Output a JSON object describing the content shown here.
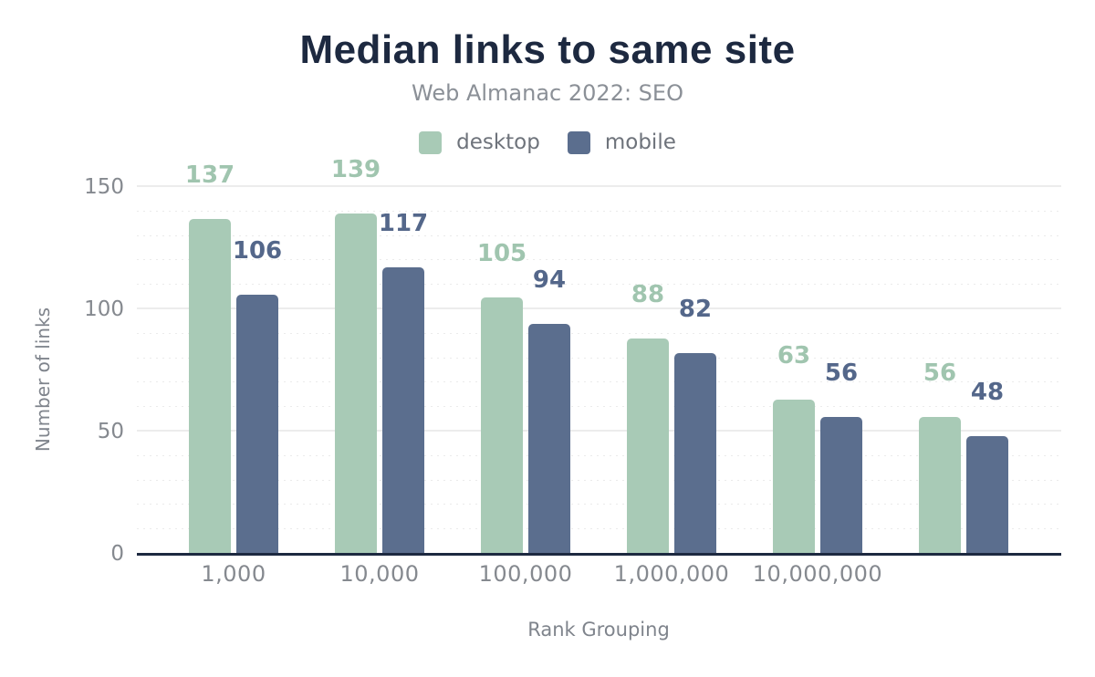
{
  "chart_data": {
    "type": "bar",
    "title": "Median links to same site",
    "subtitle": "Web Almanac 2022: SEO",
    "xlabel": "Rank Grouping",
    "ylabel": "Number of links",
    "categories": [
      "1,000",
      "10,000",
      "100,000",
      "1,000,000",
      "10,000,000",
      ""
    ],
    "series": [
      {
        "name": "desktop",
        "values": [
          137,
          139,
          105,
          88,
          63,
          56
        ],
        "color": "#a8cab6",
        "label_color": "#a0c5af"
      },
      {
        "name": "mobile",
        "values": [
          106,
          117,
          94,
          82,
          56,
          48
        ],
        "color": "#5b6e8e",
        "label_color": "#54678a"
      }
    ],
    "ylim": [
      0,
      164
    ],
    "yticks": [
      0,
      50,
      100,
      150
    ],
    "minor_grid_step": 10,
    "grid": true,
    "legend_position": "top"
  },
  "colors": {
    "title": "#1d2940",
    "subtitle": "#8b9097",
    "legend_text": "#6e737b",
    "tick_label": "#85898f",
    "axis_title": "#7f848c",
    "grid_major": "#ececec",
    "grid_minor": "#ebebeb",
    "baseline": "#1d2940"
  }
}
